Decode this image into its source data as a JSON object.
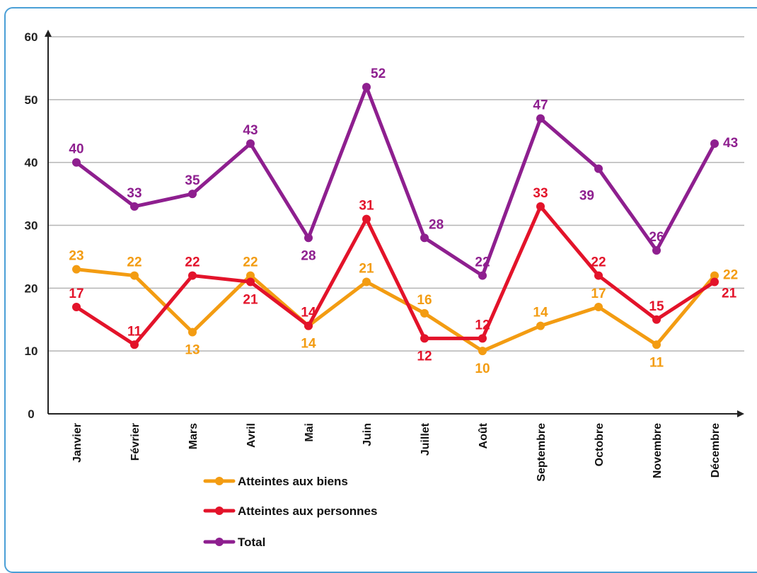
{
  "chart_data": {
    "type": "line",
    "categories": [
      "Janvier",
      "Février",
      "Mars",
      "Avril",
      "Mai",
      "Juin",
      "Juillet",
      "Août",
      "Septembre",
      "Octobre",
      "Novembre",
      "Décembre"
    ],
    "series": [
      {
        "name": "Atteintes aux biens",
        "color": "#f39c12",
        "values": [
          23,
          22,
          13,
          22,
          14,
          21,
          16,
          10,
          14,
          17,
          11,
          22
        ]
      },
      {
        "name": "Atteintes aux personnes",
        "color": "#e3132a",
        "values": [
          17,
          11,
          22,
          21,
          14,
          31,
          12,
          12,
          33,
          22,
          15,
          21
        ]
      },
      {
        "name": "Total",
        "color": "#8e1f8f",
        "values": [
          40,
          33,
          35,
          43,
          28,
          52,
          28,
          22,
          47,
          39,
          26,
          43
        ]
      }
    ],
    "ylim": [
      0,
      60
    ],
    "yticks": [
      0,
      10,
      20,
      30,
      40,
      50,
      60
    ],
    "grid": true,
    "legend": "bottom-left"
  }
}
